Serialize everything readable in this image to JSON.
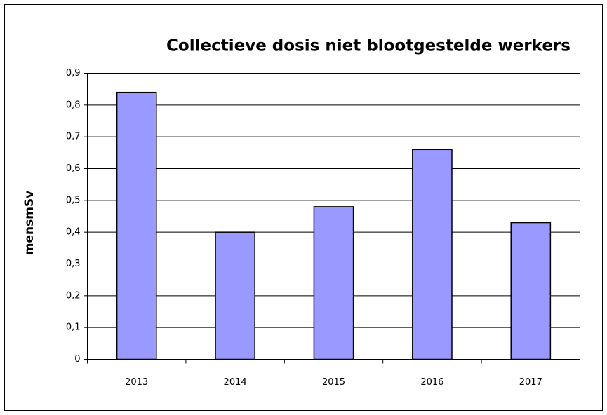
{
  "chart_data": {
    "type": "bar",
    "title": "Collectieve dosis niet blootgestelde werkers",
    "y_label": "mensmSv",
    "categories": [
      "2013",
      "2014",
      "2015",
      "2016",
      "2017"
    ],
    "values": [
      0.84,
      0.4,
      0.48,
      0.66,
      0.43
    ],
    "color": "#9999ff",
    "ylim": [
      0,
      0.9
    ],
    "yticks": [
      0,
      {
        "value": 0.1,
        "label": "0,1"
      },
      {
        "value": 0.2,
        "label": "0,2"
      },
      {
        "value": 0.3,
        "label": "0,3"
      },
      {
        "value": 0.4,
        "label": "0,4"
      },
      {
        "value": 0.5,
        "label": "0,5"
      },
      {
        "value": 0.6,
        "label": "0,6"
      },
      {
        "value": 0.7,
        "label": "0,7"
      },
      {
        "value": 0.8,
        "label": "0,8"
      },
      {
        "value": 0.9,
        "label": "0,9"
      }
    ],
    "grid": true
  }
}
